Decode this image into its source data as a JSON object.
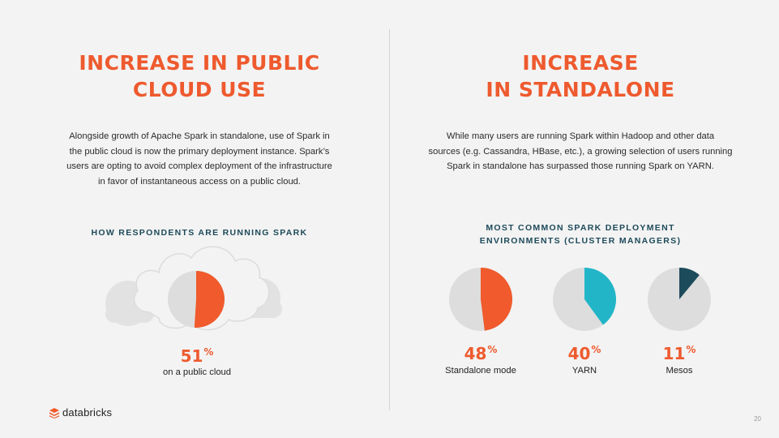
{
  "left": {
    "title_lines": [
      "INCREASE IN PUBLIC",
      "CLOUD USE"
    ],
    "body_lines": [
      "Alongside growth of Apache Spark in standalone, use of Spark in",
      "the public cloud is now the primary deployment instance. Spark’s",
      "users are opting to avoid complex deployment of the infrastructure",
      "in favor of instantaneous access on a public cloud."
    ],
    "subhead": "HOW RESPONDENTS ARE RUNNING SPARK",
    "stat": {
      "value": "51",
      "unit": "%",
      "label": "on a public cloud",
      "fraction": 0.51,
      "color": "#f05a2c"
    },
    "icon": "cloud-icon"
  },
  "right": {
    "title_lines": [
      "INCREASE",
      "IN STANDALONE"
    ],
    "body_lines": [
      "While many users are running Spark within Hadoop and other data",
      "sources (e.g. Cassandra, HBase, etc.), a growing selection of users running",
      "Spark in standalone has surpassed those running Spark on YARN."
    ],
    "subhead_lines": [
      "MOST COMMON SPARK DEPLOYMENT",
      "ENVIRONMENTS (CLUSTER MANAGERS)"
    ]
  },
  "chart_data": {
    "type": "pie",
    "title": "MOST COMMON SPARK DEPLOYMENT ENVIRONMENTS (CLUSTER MANAGERS)",
    "series": [
      {
        "name": "Standalone mode",
        "value": 48,
        "color": "#f05a2c"
      },
      {
        "name": "YARN",
        "value": 40,
        "color": "#22b5c8"
      },
      {
        "name": "Mesos",
        "value": 11,
        "color": "#1c4b5b"
      }
    ]
  },
  "footer": {
    "brand": "databricks",
    "page_number": "20"
  },
  "colors": {
    "accent": "#ee5a2e",
    "track": "#dddddd",
    "heading_dark": "#1d4a5a"
  }
}
